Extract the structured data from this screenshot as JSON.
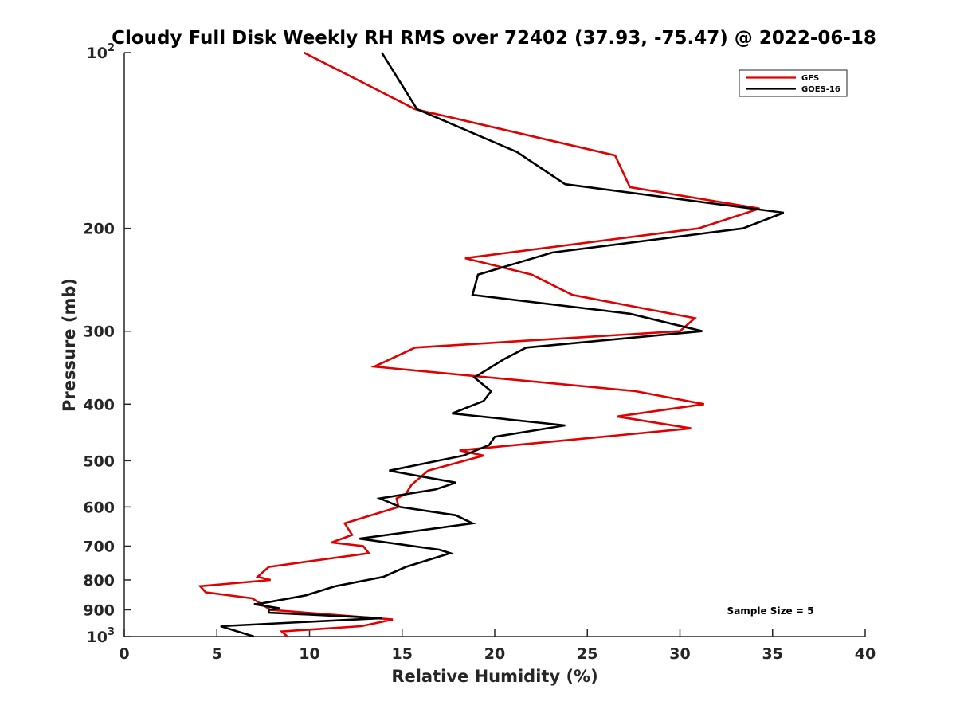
{
  "chart_data": {
    "type": "line",
    "title": "Cloudy Full Disk Weekly RH RMS over 72402 (37.93, -75.47) @ 2022-06-18",
    "xlabel": "Relative Humidity (%)",
    "ylabel": "Pressure (mb)",
    "xlim": [
      0,
      40
    ],
    "ylim": [
      100,
      1000
    ],
    "y_scale": "log",
    "y_reversed": true,
    "xticks": [
      0,
      5,
      10,
      15,
      20,
      25,
      30,
      35,
      40
    ],
    "xtick_labels": [
      "0",
      "5",
      "10",
      "15",
      "20",
      "25",
      "30",
      "35",
      "40"
    ],
    "yticks": [
      100,
      200,
      300,
      400,
      500,
      600,
      700,
      800,
      900,
      1000
    ],
    "ytick_labels": [
      {
        "base": "10",
        "exp": "2"
      },
      {
        "base": "200",
        "exp": ""
      },
      {
        "base": "300",
        "exp": ""
      },
      {
        "base": "400",
        "exp": ""
      },
      {
        "base": "500",
        "exp": ""
      },
      {
        "base": "600",
        "exp": ""
      },
      {
        "base": "700",
        "exp": ""
      },
      {
        "base": "800",
        "exp": ""
      },
      {
        "base": "900",
        "exp": ""
      },
      {
        "base": "10",
        "exp": "3"
      }
    ],
    "grid": false,
    "legend_position": "top-right",
    "annotation": "Sample Size = 5",
    "series": [
      {
        "name": "GFS",
        "color": "#e00000",
        "points": [
          [
            9.7,
            100
          ],
          [
            15.7,
            125
          ],
          [
            26.5,
            150
          ],
          [
            27.3,
            170
          ],
          [
            34.3,
            185
          ],
          [
            31.0,
            200
          ],
          [
            18.4,
            225
          ],
          [
            22.0,
            240
          ],
          [
            24.2,
            260
          ],
          [
            30.8,
            285
          ],
          [
            30.0,
            300
          ],
          [
            15.7,
            320
          ],
          [
            13.5,
            345
          ],
          [
            27.6,
            380
          ],
          [
            31.3,
            400
          ],
          [
            26.6,
            420
          ],
          [
            30.6,
            440
          ],
          [
            22.7,
            465
          ],
          [
            18.1,
            480
          ],
          [
            19.4,
            490
          ],
          [
            16.4,
            520
          ],
          [
            15.5,
            550
          ],
          [
            15.2,
            570
          ],
          [
            14.7,
            580
          ],
          [
            14.8,
            600
          ],
          [
            11.9,
            640
          ],
          [
            12.3,
            670
          ],
          [
            11.2,
            690
          ],
          [
            12.9,
            700
          ],
          [
            13.2,
            720
          ],
          [
            7.8,
            760
          ],
          [
            7.2,
            790
          ],
          [
            7.9,
            800
          ],
          [
            4.1,
            820
          ],
          [
            4.4,
            840
          ],
          [
            6.9,
            860
          ],
          [
            7.9,
            900
          ],
          [
            14.5,
            935
          ],
          [
            12.8,
            960
          ],
          [
            8.5,
            980
          ],
          [
            8.8,
            1000
          ]
        ]
      },
      {
        "name": "GOES-16",
        "color": "#000000",
        "points": [
          [
            13.9,
            100
          ],
          [
            15.8,
            125
          ],
          [
            21.2,
            148
          ],
          [
            23.8,
            168
          ],
          [
            35.6,
            188
          ],
          [
            33.4,
            200
          ],
          [
            23.1,
            220
          ],
          [
            19.1,
            240
          ],
          [
            18.8,
            260
          ],
          [
            27.3,
            280
          ],
          [
            31.2,
            300
          ],
          [
            21.7,
            320
          ],
          [
            20.5,
            335
          ],
          [
            18.9,
            360
          ],
          [
            19.8,
            380
          ],
          [
            19.4,
            395
          ],
          [
            17.7,
            415
          ],
          [
            23.8,
            435
          ],
          [
            20.0,
            455
          ],
          [
            19.7,
            470
          ],
          [
            18.3,
            490
          ],
          [
            14.3,
            520
          ],
          [
            17.9,
            545
          ],
          [
            16.8,
            560
          ],
          [
            13.8,
            580
          ],
          [
            14.9,
            600
          ],
          [
            17.9,
            620
          ],
          [
            18.8,
            640
          ],
          [
            12.7,
            680
          ],
          [
            17.0,
            710
          ],
          [
            17.6,
            720
          ],
          [
            15.2,
            760
          ],
          [
            14.0,
            790
          ],
          [
            11.4,
            820
          ],
          [
            9.8,
            850
          ],
          [
            7.2,
            880
          ],
          [
            7.0,
            880
          ],
          [
            8.4,
            895
          ],
          [
            7.8,
            900
          ],
          [
            7.8,
            910
          ],
          [
            13.9,
            930
          ],
          [
            5.2,
            960
          ],
          [
            7.0,
            1000
          ]
        ]
      }
    ]
  }
}
